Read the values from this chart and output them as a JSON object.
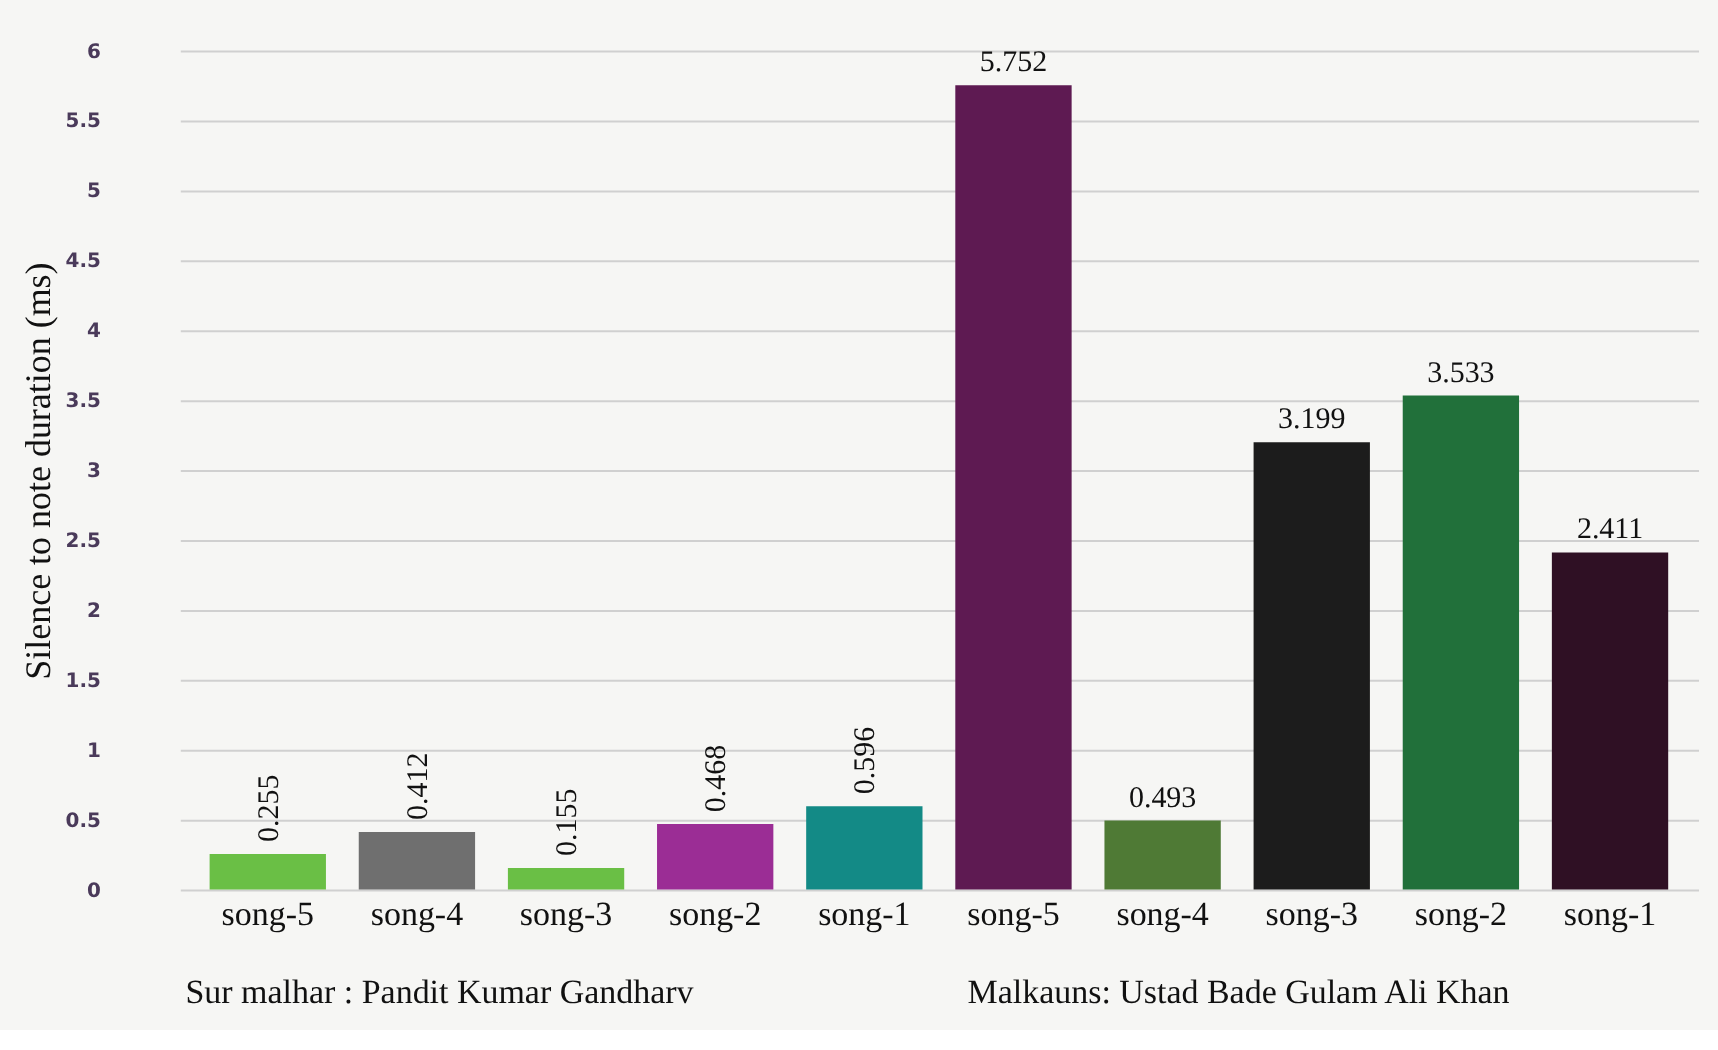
{
  "chart_data": {
    "type": "bar",
    "ylabel": "Silence to note duration (ms)",
    "categories": [
      "song-5",
      "song-4",
      "song-3",
      "song-2",
      "song-1",
      "song-5",
      "song-4",
      "song-3",
      "song-2",
      "song-1"
    ],
    "values": [
      0.255,
      0.412,
      0.155,
      0.468,
      0.596,
      5.752,
      0.493,
      3.199,
      3.533,
      2.411
    ],
    "colors": [
      "#6abf45",
      "#6f6f6f",
      "#6abf45",
      "#9b2d95",
      "#138a86",
      "#5e1a52",
      "#4f7a35",
      "#1c1c1c",
      "#21703a",
      "#2f1024"
    ],
    "ylim": [
      0,
      6
    ],
    "yticks": [
      0,
      0.5,
      1,
      1.5,
      2,
      2.5,
      3,
      3.5,
      4,
      4.5,
      5,
      5.5,
      6
    ],
    "grid": "y",
    "data_labels": true,
    "annotations": [
      "Sur malhar : Pandit Kumar Gandharv",
      "Malkauns: Ustad Bade  Gulam Ali Khan"
    ]
  }
}
